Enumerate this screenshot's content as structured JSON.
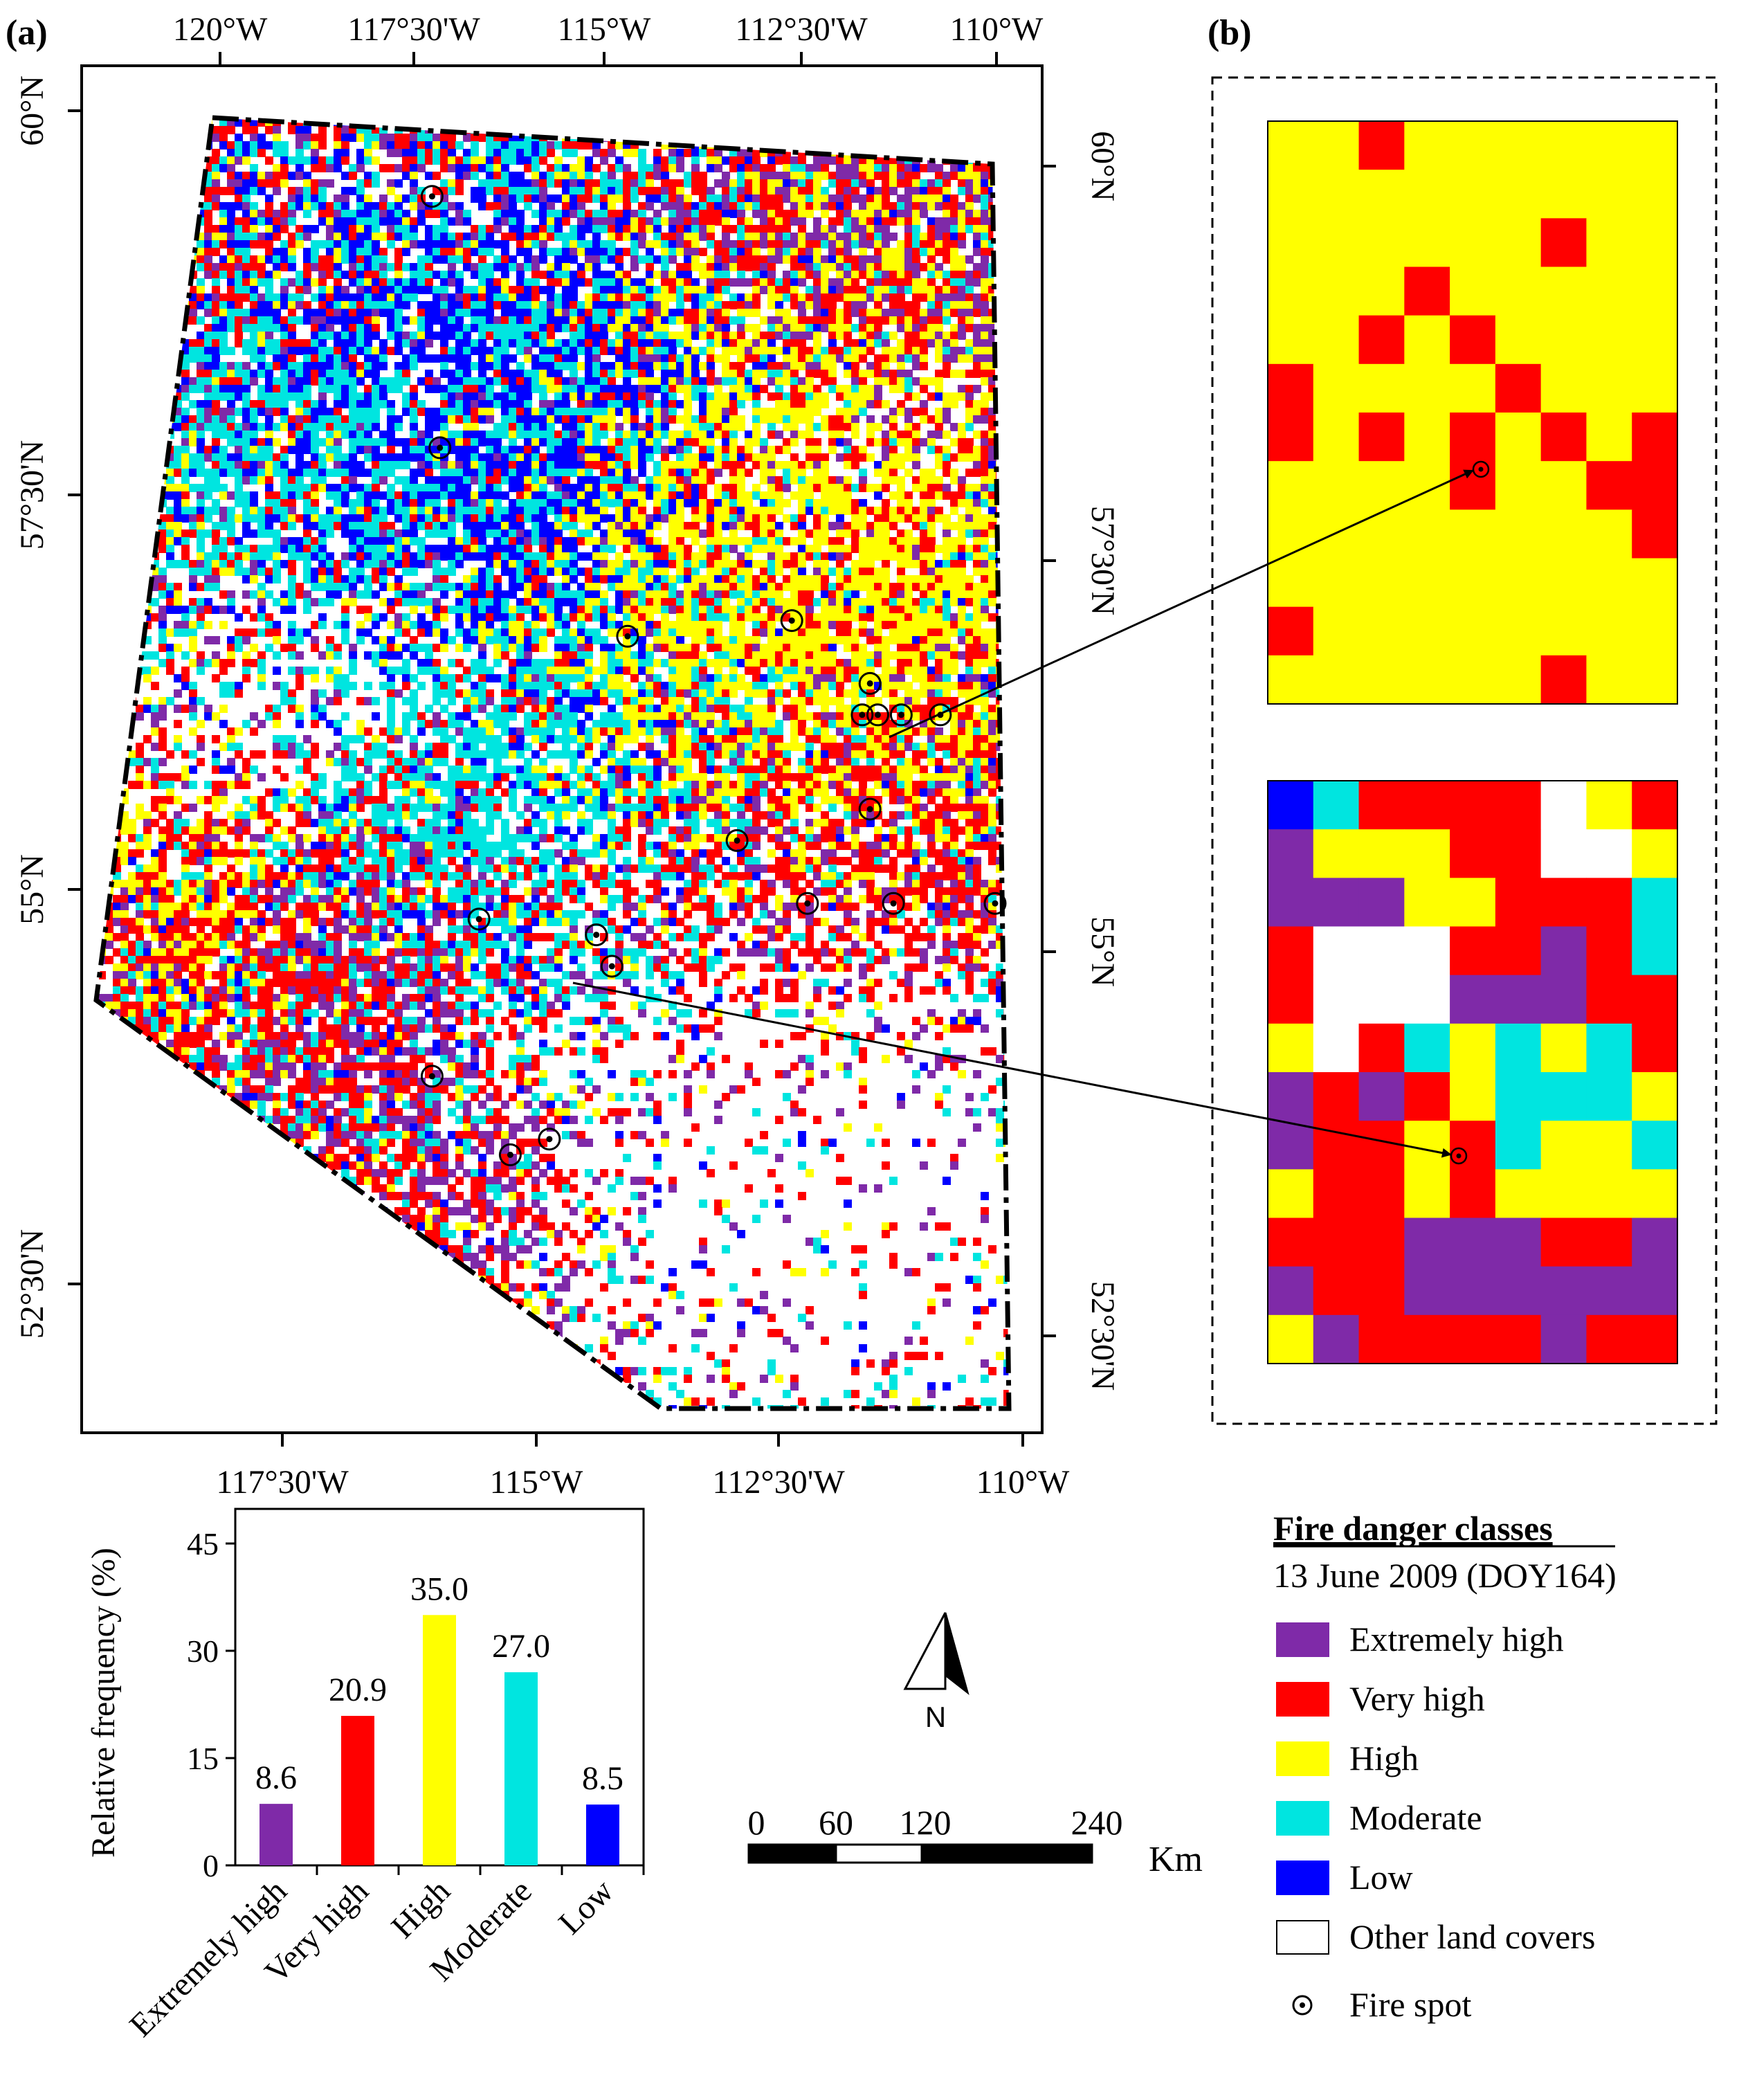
{
  "panels": {
    "a": "(a)",
    "b": "(b)"
  },
  "map": {
    "top_lon_labels": [
      "120°W",
      "117°30'W",
      "115°W",
      "112°30'W",
      "110°W"
    ],
    "bottom_lon_labels": [
      "117°30'W",
      "115°W",
      "112°30'W",
      "110°W"
    ],
    "left_lat_labels": [
      "60°N",
      "57°30'N",
      "55°N",
      "52°30'N"
    ],
    "right_lat_labels": [
      "60°N",
      "57°30'N",
      "55°N",
      "52°30'N"
    ],
    "north_label": "N",
    "scale_bar": {
      "ticks": [
        "0",
        "60",
        "120",
        "240"
      ],
      "unit": "Km"
    }
  },
  "colors": {
    "extremely_high": "#7f2aa8",
    "very_high": "#ff0000",
    "high": "#ffff00",
    "moderate": "#00e5e0",
    "low": "#0000ff",
    "other": "#ffffff"
  },
  "legend": {
    "title": "Fire danger classes",
    "date": "13 June 2009 (DOY164)",
    "items": [
      {
        "label": "Extremely high",
        "color": "#7f2aa8"
      },
      {
        "label": "Very high",
        "color": "#ff0000"
      },
      {
        "label": "High",
        "color": "#ffff00"
      },
      {
        "label": "Moderate",
        "color": "#00e5e0"
      },
      {
        "label": "Low",
        "color": "#0000ff"
      },
      {
        "label": "Other land covers",
        "color": "#ffffff"
      }
    ],
    "fire_spot_label": "Fire spot"
  },
  "chart_data": {
    "type": "bar",
    "categories": [
      "Extremely high",
      "Very high",
      "High",
      "Moderate",
      "Low"
    ],
    "values": [
      8.6,
      20.9,
      35.0,
      27.0,
      8.5
    ],
    "value_labels": [
      "8.6",
      "20.9",
      "35.0",
      "27.0",
      "8.5"
    ],
    "colors": [
      "#7f2aa8",
      "#ff0000",
      "#ffff00",
      "#00e5e0",
      "#0000ff"
    ],
    "ylabel": "Relative frequency (%)",
    "ylim": [
      0,
      45
    ],
    "yticks": [
      "0",
      "15",
      "30",
      "45"
    ]
  },
  "fire_spots": [
    {
      "lon": -117.2,
      "lat": 59.4
    },
    {
      "lon": -117.1,
      "lat": 57.8
    },
    {
      "lon": -114.7,
      "lat": 56.6
    },
    {
      "lon": -112.6,
      "lat": 56.7
    },
    {
      "lon": -111.6,
      "lat": 56.3
    },
    {
      "lon": -111.7,
      "lat": 56.1
    },
    {
      "lon": -111.5,
      "lat": 56.1
    },
    {
      "lon": -111.2,
      "lat": 56.1
    },
    {
      "lon": -110.7,
      "lat": 56.1
    },
    {
      "lon": -111.6,
      "lat": 55.5
    },
    {
      "lon": -113.3,
      "lat": 55.3
    },
    {
      "lon": -112.4,
      "lat": 54.9
    },
    {
      "lon": -111.3,
      "lat": 54.9
    },
    {
      "lon": -110.0,
      "lat": 54.9
    },
    {
      "lon": -116.6,
      "lat": 54.8
    },
    {
      "lon": -114.9,
      "lat": 54.5
    },
    {
      "lon": -115.1,
      "lat": 54.7
    },
    {
      "lon": -117.2,
      "lat": 53.8
    },
    {
      "lon": -116.2,
      "lat": 53.3
    },
    {
      "lon": -115.7,
      "lat": 53.4
    }
  ]
}
